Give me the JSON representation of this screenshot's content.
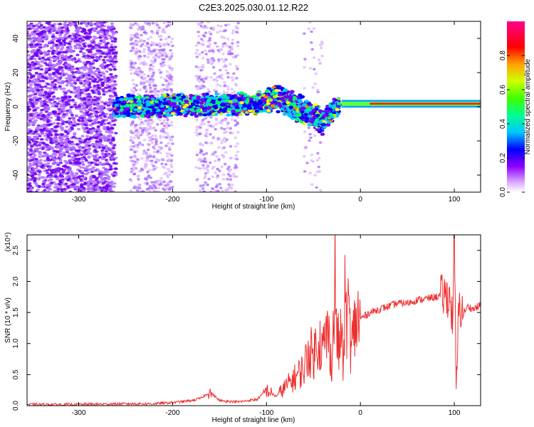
{
  "title": "C2E3.2025.030.01.12.R22",
  "chart_data": [
    {
      "type": "heatmap",
      "xlabel": "Height of straight line (km)",
      "ylabel": "Frequency (Hz)",
      "xlim": [
        -355,
        128
      ],
      "ylim": [
        -50,
        50
      ],
      "xticks": [
        -300,
        -200,
        -100,
        0,
        100
      ],
      "yticks": [
        -40,
        -20,
        0,
        20,
        40
      ],
      "colorbar": {
        "label": "Normalized spectral amplitude",
        "range": [
          0,
          1
        ],
        "ticks": [
          "0.0",
          "0.2",
          "0.4",
          "0.6",
          "0.8"
        ],
        "tick_values": [
          0,
          0.2,
          0.4,
          0.6,
          0.8
        ]
      },
      "colormap": [
        "#ffffff",
        "#b070ff",
        "#7000f0",
        "#0000ff",
        "#00c8ff",
        "#00ff60",
        "#a0ff00",
        "#ffff00",
        "#ff8000",
        "#ff0000",
        "#ff0090"
      ],
      "band_center_hz": [
        {
          "x": -260,
          "y": 0
        },
        {
          "x": -100,
          "y": 2
        },
        {
          "x": -90,
          "y": 6
        },
        {
          "x": -60,
          "y": -2
        },
        {
          "x": -40,
          "y": -8
        },
        {
          "x": -25,
          "y": 0
        },
        {
          "x": 0,
          "y": 1
        },
        {
          "x": 128,
          "y": 2
        }
      ]
    },
    {
      "type": "line",
      "xlabel": "Height of straight line (km)",
      "ylabel": "SNR (10 * v/v)",
      "multiplier": "(x10⁴)",
      "xlim": [
        -355,
        128
      ],
      "ylim": [
        0,
        2.75
      ],
      "xticks": [
        -300,
        -200,
        -100,
        0,
        100
      ],
      "yticks": [
        0.0,
        0.5,
        1.0,
        1.5,
        2.0,
        2.5
      ],
      "ytick_labels": [
        "0.0",
        "0.5",
        "1.0",
        "1.5",
        "2.0",
        "2.5"
      ],
      "color": "#ee3030",
      "series": [
        {
          "x": [
            -355,
            -300,
            -250,
            -220,
            -200,
            -180,
            -170,
            -160,
            -150,
            -130,
            -110,
            -100,
            -90,
            -80,
            -70,
            -60,
            -55,
            -50,
            -45,
            -40,
            -35,
            -30,
            -27,
            -25,
            -22,
            -20,
            -18,
            -16,
            -14,
            -12,
            -10,
            -8,
            -5,
            0,
            10,
            20,
            30,
            40,
            50,
            60,
            70,
            80,
            90,
            95,
            98,
            100,
            102,
            105,
            110,
            115,
            120,
            128
          ],
          "y": [
            0.02,
            0.02,
            0.03,
            0.03,
            0.05,
            0.08,
            0.12,
            0.22,
            0.08,
            0.06,
            0.1,
            0.25,
            0.15,
            0.3,
            0.45,
            0.6,
            0.9,
            0.8,
            1.1,
            0.9,
            1.2,
            0.7,
            2.1,
            1.1,
            0.9,
            1.3,
            0.5,
            2.0,
            1.2,
            1.7,
            0.8,
            1.1,
            1.35,
            1.4,
            1.5,
            1.55,
            1.6,
            1.65,
            1.65,
            1.7,
            1.72,
            1.75,
            1.78,
            1.75,
            1.4,
            2.75,
            0.2,
            1.6,
            1.5,
            1.6,
            1.55,
            1.62
          ]
        }
      ]
    }
  ]
}
